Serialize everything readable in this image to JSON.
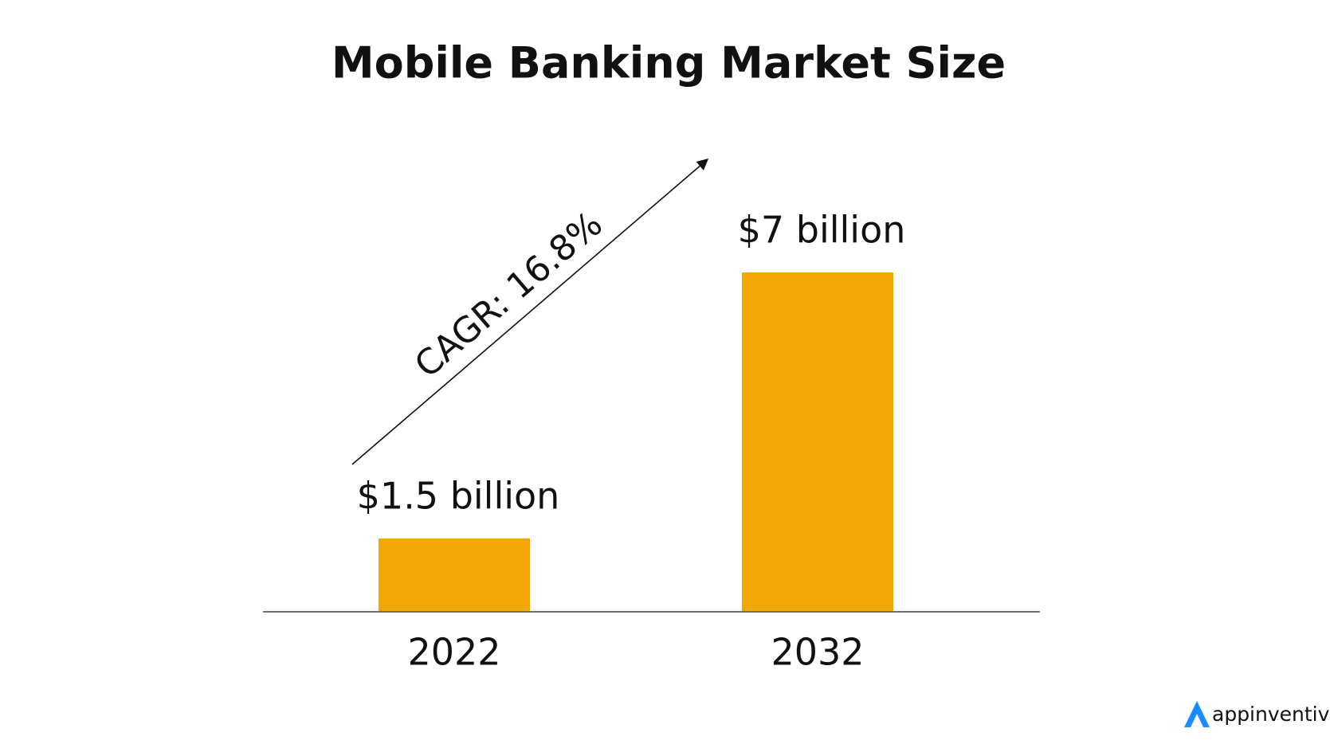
{
  "chart_data": {
    "type": "bar",
    "title": "Mobile Banking Market Size",
    "categories": [
      "2022",
      "2032"
    ],
    "values": [
      1.5,
      7
    ],
    "value_labels": [
      "$1.5 billion",
      "$7 billion"
    ],
    "color": "#f2a705",
    "annotation": "CAGR: 16.8%"
  },
  "logo": "appinventiv"
}
